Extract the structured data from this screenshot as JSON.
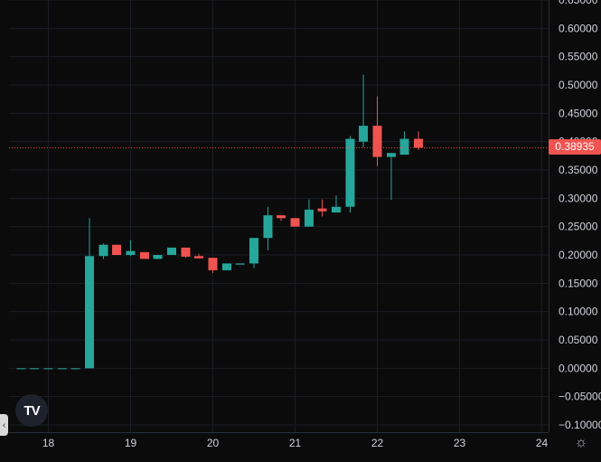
{
  "chart_data": {
    "type": "candlestick",
    "x_ticks": [
      "18",
      "19",
      "20",
      "21",
      "22",
      "23",
      "24"
    ],
    "y_ticks": [
      "0.65000",
      "0.60000",
      "0.55000",
      "0.50000",
      "0.45000",
      "0.40000",
      "0.35000",
      "0.30000",
      "0.25000",
      "0.20000",
      "0.15000",
      "0.10000",
      "0.05000",
      "0.00000",
      "−0.05000",
      "−0.10000"
    ],
    "ylim": [
      -0.1,
      0.65
    ],
    "xlim": [
      17.4,
      24
    ],
    "grid": true,
    "up_color": "#26a69a",
    "down_color": "#ef5350",
    "last_price": 0.38935,
    "last_price_label": "0.38935",
    "candles": [
      {
        "t": 17.67,
        "o": 0.0,
        "h": 0.0,
        "l": 0.0,
        "c": 0.0
      },
      {
        "t": 17.83,
        "o": 0.0,
        "h": 0.0,
        "l": 0.0,
        "c": 0.0
      },
      {
        "t": 18.0,
        "o": 0.0,
        "h": 0.0,
        "l": 0.0,
        "c": 0.0
      },
      {
        "t": 18.17,
        "o": 0.0,
        "h": 0.0,
        "l": 0.0,
        "c": 0.0
      },
      {
        "t": 18.33,
        "o": 0.0,
        "h": 0.0,
        "l": 0.0,
        "c": 0.0
      },
      {
        "t": 18.5,
        "o": 0.0,
        "h": 0.265,
        "l": 0.0,
        "c": 0.198
      },
      {
        "t": 18.67,
        "o": 0.198,
        "h": 0.22,
        "l": 0.193,
        "c": 0.218
      },
      {
        "t": 18.83,
        "o": 0.218,
        "h": 0.218,
        "l": 0.2,
        "c": 0.2
      },
      {
        "t": 19.0,
        "o": 0.2,
        "h": 0.226,
        "l": 0.198,
        "c": 0.207
      },
      {
        "t": 19.17,
        "o": 0.205,
        "h": 0.205,
        "l": 0.193,
        "c": 0.193
      },
      {
        "t": 19.33,
        "o": 0.193,
        "h": 0.2,
        "l": 0.193,
        "c": 0.2
      },
      {
        "t": 19.5,
        "o": 0.2,
        "h": 0.213,
        "l": 0.2,
        "c": 0.213
      },
      {
        "t": 19.67,
        "o": 0.213,
        "h": 0.213,
        "l": 0.195,
        "c": 0.197
      },
      {
        "t": 19.83,
        "o": 0.198,
        "h": 0.202,
        "l": 0.194,
        "c": 0.194
      },
      {
        "t": 20.0,
        "o": 0.195,
        "h": 0.195,
        "l": 0.168,
        "c": 0.173
      },
      {
        "t": 20.17,
        "o": 0.173,
        "h": 0.185,
        "l": 0.173,
        "c": 0.185
      },
      {
        "t": 20.33,
        "o": 0.183,
        "h": 0.185,
        "l": 0.183,
        "c": 0.185
      },
      {
        "t": 20.5,
        "o": 0.185,
        "h": 0.23,
        "l": 0.177,
        "c": 0.23
      },
      {
        "t": 20.67,
        "o": 0.23,
        "h": 0.285,
        "l": 0.208,
        "c": 0.27
      },
      {
        "t": 20.83,
        "o": 0.27,
        "h": 0.27,
        "l": 0.26,
        "c": 0.265
      },
      {
        "t": 21.0,
        "o": 0.265,
        "h": 0.265,
        "l": 0.25,
        "c": 0.25
      },
      {
        "t": 21.17,
        "o": 0.25,
        "h": 0.298,
        "l": 0.25,
        "c": 0.28
      },
      {
        "t": 21.33,
        "o": 0.282,
        "h": 0.298,
        "l": 0.268,
        "c": 0.277
      },
      {
        "t": 21.5,
        "o": 0.275,
        "h": 0.305,
        "l": 0.275,
        "c": 0.285
      },
      {
        "t": 21.67,
        "o": 0.285,
        "h": 0.41,
        "l": 0.275,
        "c": 0.405
      },
      {
        "t": 21.83,
        "o": 0.4,
        "h": 0.518,
        "l": 0.39,
        "c": 0.428
      },
      {
        "t": 22.0,
        "o": 0.428,
        "h": 0.48,
        "l": 0.357,
        "c": 0.373
      },
      {
        "t": 22.17,
        "o": 0.373,
        "h": 0.38,
        "l": 0.297,
        "c": 0.38
      },
      {
        "t": 22.33,
        "o": 0.377,
        "h": 0.418,
        "l": 0.377,
        "c": 0.405
      },
      {
        "t": 22.5,
        "o": 0.405,
        "h": 0.418,
        "l": 0.385,
        "c": 0.38935
      }
    ]
  },
  "ui": {
    "logo_text": "TV",
    "settings_icon": "gear-icon",
    "collapse_icon": "chevron-left-icon"
  }
}
